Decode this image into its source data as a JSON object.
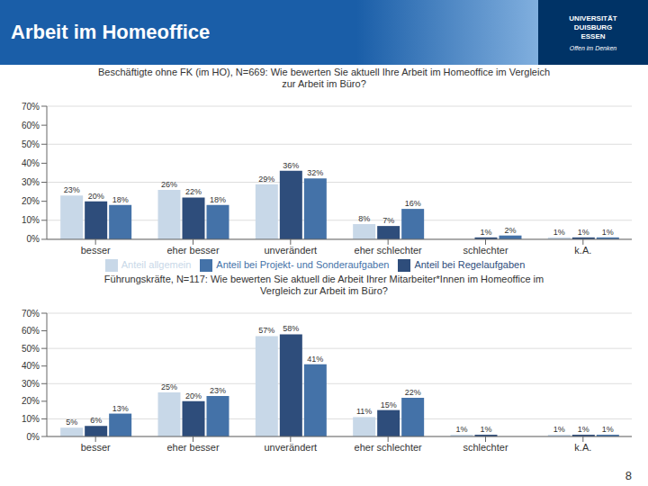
{
  "chart_data": [
    {
      "type": "bar",
      "title": "Arbeit im Homeoffice",
      "subtitle": "Beschäftigte ohne FK (im HO), N=669: Wie bewerten Sie aktuell Ihre Arbeit im Homeoffice im Vergleich\nzur Arbeit im Büro?",
      "annotations": [
        "UNIVERSITÄT\nDUISBURG\nESSEN",
        "Offen im Denken"
      ],
      "categories": [
        "besser",
        "eher besser",
        "unverändert",
        "eher schlechter",
        "schlechter",
        "k.A."
      ],
      "series": [
        {
          "name": "Anteil allgemein",
          "color": "#c8d8e8",
          "values": [
            23,
            26,
            29,
            8,
            0,
            1
          ],
          "value_labels": [
            "23%",
            "26%",
            "29%",
            "8%",
            null,
            "1%"
          ]
        },
        {
          "name": "Anteil bei Regelaufgaben",
          "color": "#2e4d7b",
          "values": [
            20,
            22,
            36,
            7,
            1,
            1
          ],
          "value_labels": [
            "20%",
            "22%",
            "36%",
            "7%",
            "1%",
            "1%"
          ]
        },
        {
          "name": "Anteil bei Projekt- und Sonderaufgaben",
          "color": "#4472a8",
          "values": [
            18,
            18,
            32,
            16,
            2,
            1
          ],
          "value_labels": [
            "18%",
            "18%",
            "32%",
            "16%",
            "2%",
            "1%"
          ]
        }
      ],
      "ylim": [
        0,
        70
      ],
      "yticks": [
        {
          "value": 0,
          "label": "0%"
        },
        {
          "value": 10,
          "label": "10%"
        },
        {
          "value": 20,
          "label": "20%"
        },
        {
          "value": 30,
          "label": "30%"
        },
        {
          "value": 40,
          "label": "40%"
        },
        {
          "value": 50,
          "label": "50%"
        },
        {
          "value": 60,
          "label": "60%"
        },
        {
          "value": 70,
          "label": "70%"
        }
      ],
      "grid": true,
      "data_labels": true,
      "legend": "bottom"
    },
    {
      "type": "bar",
      "subtitle": "Führungskräfte, N=117: Wie bewerten Sie aktuell die Arbeit Ihrer Mitarbeiter*Innen im Homeoffice im\nVergleich zur Arbeit im Büro?",
      "annotations": [
        "8"
      ],
      "categories": [
        "besser",
        "eher besser",
        "unverändert",
        "eher schlechter",
        "schlechter",
        "k.A."
      ],
      "series": [
        {
          "name": "Anteil allgemein",
          "color": "#c8d8e8",
          "values": [
            5,
            25,
            57,
            11,
            1,
            1
          ],
          "value_labels": [
            "5%",
            "25%",
            "57%",
            "11%",
            "1%",
            "1%"
          ]
        },
        {
          "name": "Anteil bei Regelaufgaben",
          "color": "#2e4d7b",
          "values": [
            6,
            20,
            58,
            15,
            1,
            1
          ],
          "value_labels": [
            "6%",
            "20%",
            "58%",
            "15%",
            "1%",
            "1%"
          ]
        },
        {
          "name": "Anteil bei Projekt- und Sonderaufgaben",
          "color": "#4472a8",
          "values": [
            13,
            23,
            41,
            22,
            0,
            1
          ],
          "value_labels": [
            "13%",
            "23%",
            "41%",
            "22%",
            null,
            "1%"
          ]
        }
      ],
      "ylim": [
        0,
        70
      ],
      "yticks": [
        {
          "value": 0,
          "label": "0%"
        },
        {
          "value": 10,
          "label": "10%"
        },
        {
          "value": 20,
          "label": "20%"
        },
        {
          "value": 30,
          "label": "30%"
        },
        {
          "value": 40,
          "label": "40%"
        },
        {
          "value": 50,
          "label": "50%"
        },
        {
          "value": 60,
          "label": "60%"
        },
        {
          "value": 70,
          "label": "70%"
        }
      ],
      "grid": true,
      "data_labels": true,
      "legend": false
    }
  ]
}
